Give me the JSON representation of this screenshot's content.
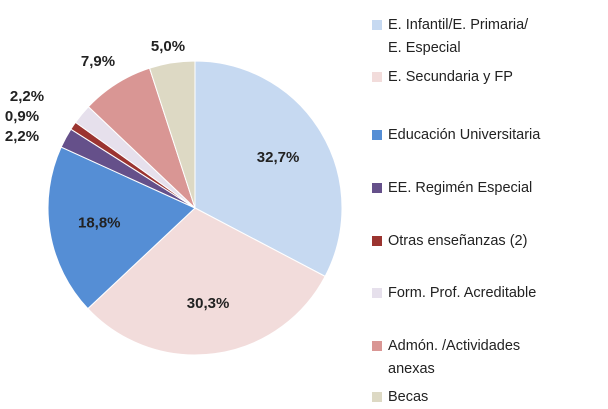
{
  "chart_data": {
    "type": "pie",
    "categories": [
      "E. Infantil/E. Primaria/\nE. Especial",
      "E. Secundaria y FP",
      "Educación Universitaria",
      "EE. Regimén Especial",
      "Otras enseñanzas (2)",
      "Form. Prof. Acreditable",
      "Admón. /Actividades\nanexas",
      "Becas"
    ],
    "values": [
      32.7,
      30.3,
      18.8,
      2.2,
      0.9,
      2.2,
      7.9,
      5.0
    ],
    "value_labels": [
      "32,7%",
      "30,3%",
      "18,8%",
      "2,2%",
      "0,9%",
      "2,2%",
      "7,9%",
      "5,0%"
    ],
    "colors": [
      "#c6d9f1",
      "#f2dcdb",
      "#558ed5",
      "#65508a",
      "#9b3430",
      "#e6e0ec",
      "#d99694",
      "#ddd9c4"
    ]
  }
}
